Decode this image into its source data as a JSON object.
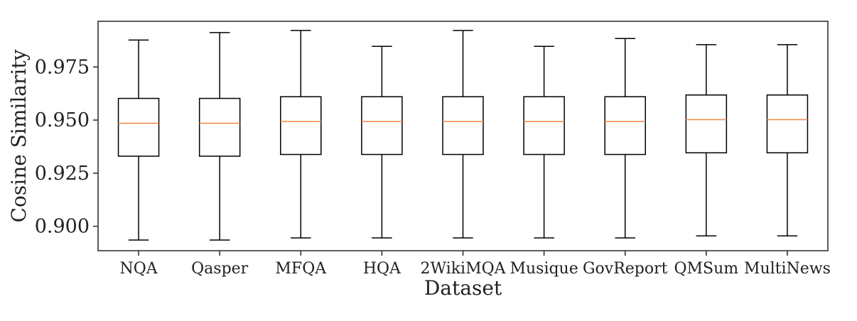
{
  "chart_data": {
    "type": "boxplot",
    "xlabel": "Dataset",
    "ylabel": "Cosine Similarity",
    "ylim": [
      0.8885,
      0.9965
    ],
    "yticks": [
      0.9,
      0.925,
      0.95,
      0.975
    ],
    "ytick_labels": [
      "0.900",
      "0.925",
      "0.950",
      "0.975"
    ],
    "grid": false,
    "categories": [
      "NQA",
      "Qasper",
      "MFQA",
      "HQA",
      "2WikiMQA",
      "Musique",
      "GovReport",
      "QMSum",
      "MultiNews"
    ],
    "boxes": [
      {
        "whislo": 0.8935,
        "q1": 0.933,
        "med": 0.9485,
        "q3": 0.9602,
        "whishi": 0.9877
      },
      {
        "whislo": 0.8935,
        "q1": 0.933,
        "med": 0.9485,
        "q3": 0.9602,
        "whishi": 0.9912
      },
      {
        "whislo": 0.8945,
        "q1": 0.9338,
        "med": 0.9493,
        "q3": 0.961,
        "whishi": 0.9922
      },
      {
        "whislo": 0.8945,
        "q1": 0.9338,
        "med": 0.9493,
        "q3": 0.961,
        "whishi": 0.9847
      },
      {
        "whislo": 0.8945,
        "q1": 0.9338,
        "med": 0.9493,
        "q3": 0.961,
        "whishi": 0.9922
      },
      {
        "whislo": 0.8945,
        "q1": 0.9338,
        "med": 0.9493,
        "q3": 0.961,
        "whishi": 0.9847
      },
      {
        "whislo": 0.8945,
        "q1": 0.9338,
        "med": 0.9493,
        "q3": 0.961,
        "whishi": 0.9884
      },
      {
        "whislo": 0.8955,
        "q1": 0.9346,
        "med": 0.9502,
        "q3": 0.9618,
        "whishi": 0.9855
      },
      {
        "whislo": 0.8955,
        "q1": 0.9346,
        "med": 0.9502,
        "q3": 0.9618,
        "whishi": 0.9855
      }
    ],
    "colors": {
      "box": "#000000",
      "median": "#f28e4f",
      "axes": "#333333"
    }
  }
}
